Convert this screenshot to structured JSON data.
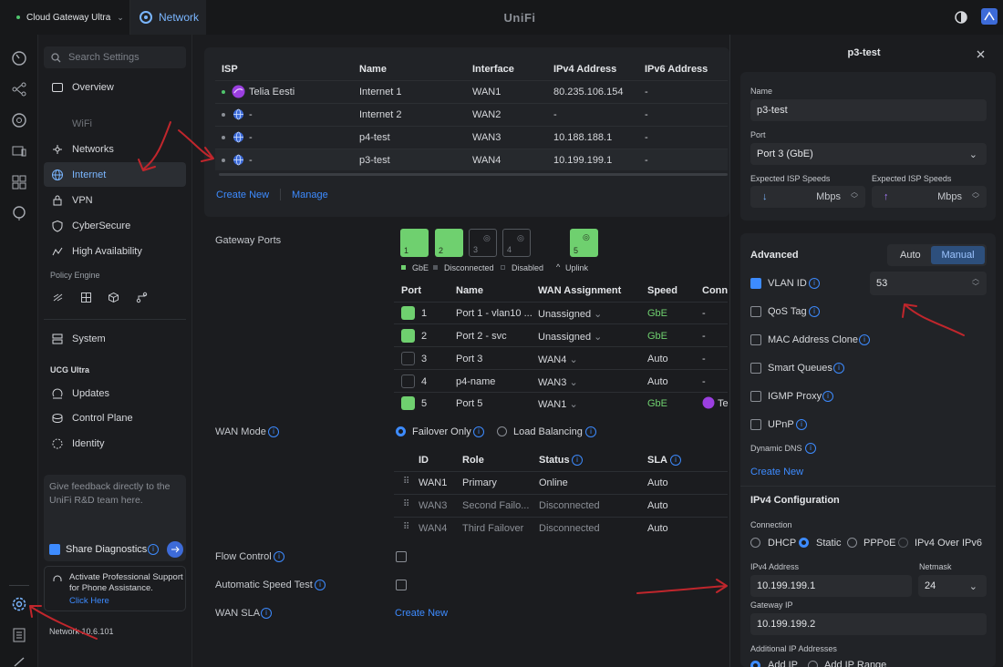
{
  "topbar": {
    "device": "Cloud Gateway Ultra",
    "app_tab": "Network",
    "brand": "UniFi"
  },
  "nav": {
    "search_placeholder": "Search Settings",
    "items": [
      {
        "label": "Overview",
        "icon": "overview-icon"
      },
      {
        "label": "WiFi",
        "icon": "wifi-icon"
      },
      {
        "label": "Networks",
        "icon": "networks-icon"
      },
      {
        "label": "Internet",
        "icon": "globe-icon"
      },
      {
        "label": "VPN",
        "icon": "vpn-icon"
      },
      {
        "label": "CyberSecure",
        "icon": "shield-icon"
      },
      {
        "label": "High Availability",
        "icon": "availability-icon"
      }
    ],
    "policy_engine": "Policy Engine",
    "system": "System",
    "ucg_section": "UCG Ultra",
    "ucg_items": [
      "Updates",
      "Control Plane",
      "Identity"
    ],
    "feedback_text": "Give feedback directly to the UniFi R&D team here.",
    "share_diag": "Share Diagnostics",
    "support_text": "Activate Professional Support for Phone Assistance.",
    "support_link": "Click Here",
    "version": "Network 10.6.101"
  },
  "isp_table": {
    "headers": [
      "ISP",
      "Name",
      "Interface",
      "IPv4 Address",
      "IPv6 Address"
    ],
    "rows": [
      {
        "isp": "Telia Eesti",
        "name": "Internet 1",
        "iface": "WAN1",
        "ipv4": "80.235.106.154",
        "ipv6": "-"
      },
      {
        "isp": "-",
        "name": "Internet 2",
        "iface": "WAN2",
        "ipv4": "-",
        "ipv6": "-"
      },
      {
        "isp": "-",
        "name": "p4-test",
        "iface": "WAN3",
        "ipv4": "10.188.188.1",
        "ipv6": "-"
      },
      {
        "isp": "-",
        "name": "p3-test",
        "iface": "WAN4",
        "ipv4": "10.199.199.1",
        "ipv6": "-"
      }
    ],
    "create_new": "Create New",
    "manage": "Manage"
  },
  "gateway_ports": {
    "label": "Gateway Ports",
    "legend": [
      "GbE",
      "Disconnected",
      "Disabled",
      "Uplink"
    ],
    "headers": [
      "Port",
      "Name",
      "WAN Assignment",
      "Speed",
      "Conn"
    ],
    "rows": [
      {
        "port": "1",
        "name": "Port 1 - vlan10 ...",
        "wan": "Unassigned",
        "speed": "GbE",
        "conn": "-"
      },
      {
        "port": "2",
        "name": "Port 2 - svc",
        "wan": "Unassigned",
        "speed": "GbE",
        "conn": "-"
      },
      {
        "port": "3",
        "name": "Port 3",
        "wan": "WAN4",
        "speed": "Auto",
        "conn": "-"
      },
      {
        "port": "4",
        "name": "p4-name",
        "wan": "WAN3",
        "speed": "Auto",
        "conn": "-"
      },
      {
        "port": "5",
        "name": "Port 5",
        "wan": "WAN1",
        "speed": "GbE",
        "conn": "Te"
      }
    ]
  },
  "wan_mode": {
    "label": "WAN Mode",
    "opt1": "Failover Only",
    "opt2": "Load Balancing"
  },
  "failover": {
    "headers": [
      "ID",
      "Role",
      "Status",
      "SLA"
    ],
    "rows": [
      {
        "id": "WAN1",
        "role": "Primary",
        "status": "Online",
        "sla": "Auto"
      },
      {
        "id": "WAN3",
        "role": "Second Failo...",
        "status": "Disconnected",
        "sla": "Auto"
      },
      {
        "id": "WAN4",
        "role": "Third Failover",
        "status": "Disconnected",
        "sla": "Auto"
      }
    ]
  },
  "flow_control": "Flow Control",
  "auto_speed_test": "Automatic Speed Test",
  "wan_sla": {
    "label": "WAN SLA",
    "link": "Create New"
  },
  "panel": {
    "title": "p3-test",
    "name_label": "Name",
    "name_value": "p3-test",
    "port_label": "Port",
    "port_value": "Port 3 (GbE)",
    "speed_label": "Expected ISP Speeds",
    "speed_unit": "Mbps",
    "advanced": "Advanced",
    "auto": "Auto",
    "manual": "Manual",
    "vlan_id": "VLAN ID",
    "vlan_value": "53",
    "options": [
      "QoS Tag",
      "MAC Address Clone",
      "Smart Queues",
      "IGMP Proxy",
      "UPnP"
    ],
    "dynamic_dns": "Dynamic DNS",
    "create_new": "Create New",
    "ipv4_config": "IPv4 Configuration",
    "connection": "Connection",
    "conn_opts": [
      "DHCP",
      "Static",
      "PPPoE",
      "IPv4 Over IPv6"
    ],
    "ipv4_label": "IPv4 Address",
    "ipv4_value": "10.199.199.1",
    "netmask_label": "Netmask",
    "netmask_value": "24",
    "gateway_label": "Gateway IP",
    "gateway_value": "10.199.199.2",
    "additional_label": "Additional IP Addresses",
    "add_ip": "Add IP",
    "add_range": "Add IP Range"
  },
  "colors": {
    "accent": "#3d8bff",
    "green": "#6fd06f",
    "annotation": "#c0262c"
  }
}
